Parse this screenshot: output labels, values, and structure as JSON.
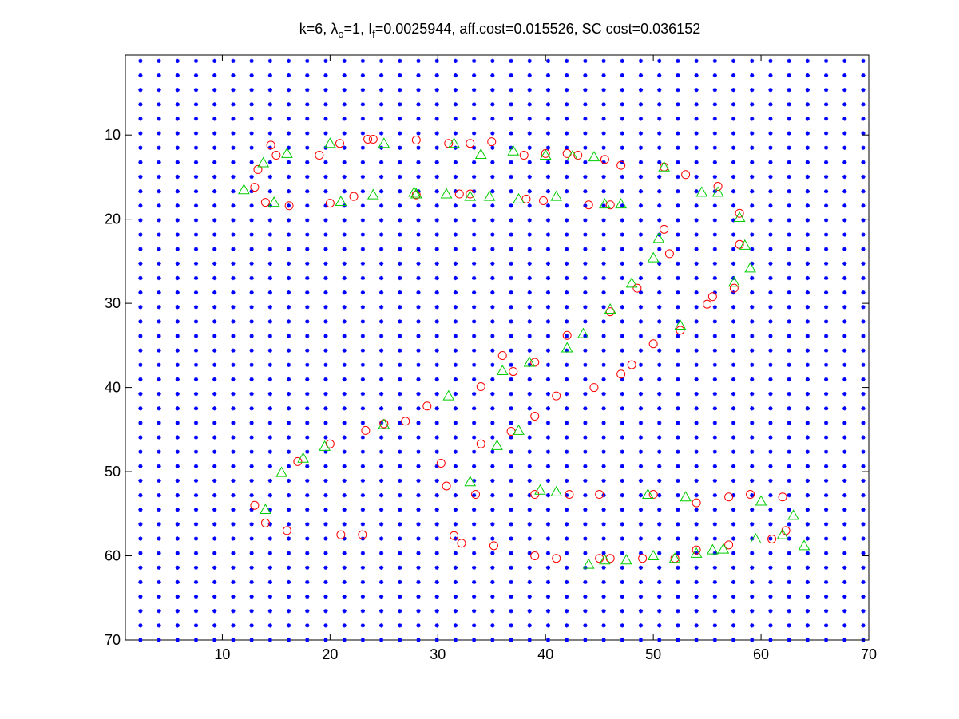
{
  "figure": {
    "title_parts": {
      "k": "k=6, ",
      "lambda_sym": "λ",
      "lambda_sub": "o",
      "lambda_val": "=1, ",
      "I_sym": "I",
      "I_sub": "f",
      "I_val": "=0.0025944, aff.cost=0.015526, SC cost=0.036152"
    },
    "background": "#ffffff"
  },
  "chart_data": {
    "type": "scatter",
    "xlim": [
      1,
      70
    ],
    "ylim": [
      0.5,
      70
    ],
    "y_reversed": true,
    "grid": false,
    "x_ticks": [
      10,
      20,
      30,
      40,
      50,
      60,
      70
    ],
    "y_ticks": [
      10,
      20,
      30,
      40,
      50,
      60,
      70
    ],
    "x_tick_labels": [
      "10",
      "20",
      "30",
      "40",
      "50",
      "60",
      "70"
    ],
    "y_tick_labels": [
      "10",
      "20",
      "30",
      "40",
      "50",
      "60",
      "70"
    ],
    "colors": {
      "grid_points": "#0000ff",
      "circles": "#ff0000",
      "triangles": "#00cc00"
    },
    "grid_points": {
      "marker": "asterisk",
      "x_start": 2.4,
      "x_end": 70,
      "x_step": 1.72,
      "y_start": 1.2,
      "y_end": 70,
      "y_step": 1.72
    },
    "series": [
      {
        "marker": "circle",
        "x": [
          13.0,
          13.3,
          14.0,
          14.5,
          15.0,
          16.2,
          19.0,
          20.0,
          20.9,
          22.2,
          23.5,
          24.0,
          25.0,
          28.0,
          28.0,
          30.3,
          30.8,
          31.0,
          32.0,
          32.2,
          33.0,
          33.0,
          33.5,
          34.0,
          34.0,
          35.0,
          35.2,
          36.0,
          36.8,
          37.0,
          38.0,
          38.2,
          39.0,
          39.0,
          39.0,
          39.0,
          39.8,
          40.0,
          41.0,
          41.0,
          42.0,
          42.0,
          42.2,
          43.0,
          44.0,
          44.5,
          45.0,
          45.0,
          45.5,
          46.0,
          46.0,
          46.0,
          47.0,
          47.0,
          48.0,
          48.5,
          49.0,
          50.0,
          50.0,
          51.0,
          51.0,
          51.5,
          52.0,
          52.5,
          53.0,
          54.0,
          54.0,
          55.0,
          55.5,
          56.0,
          57.0,
          57.0,
          57.5,
          58.0,
          58.0,
          59.0,
          61.0,
          62.0,
          62.3
        ],
        "y": [
          16.2,
          14.1,
          18.0,
          11.2,
          12.4,
          18.4,
          12.4,
          18.1,
          11.0,
          17.3,
          10.5,
          10.5,
          44.3,
          10.6,
          17.1,
          49.0,
          51.7,
          11.0,
          17.0,
          58.5,
          11.0,
          17.0,
          52.7,
          46.7,
          39.9,
          10.8,
          58.8,
          36.2,
          45.2,
          38.1,
          12.4,
          17.6,
          37.0,
          43.4,
          52.7,
          60.0,
          17.8,
          12.2,
          41.0,
          60.3,
          12.2,
          33.8,
          52.7,
          12.4,
          18.3,
          40.0,
          52.7,
          60.3,
          12.9,
          18.3,
          31.0,
          60.3,
          13.6,
          38.4,
          37.3,
          28.2,
          60.3,
          34.8,
          52.7,
          13.8,
          21.2,
          24.1,
          60.3,
          33.2,
          14.7,
          53.7,
          59.3,
          30.1,
          29.2,
          16.1,
          53.0,
          58.7,
          28.2,
          19.3,
          23.0,
          52.7,
          58.0,
          53.0,
          57.0
        ],
        "x_extra": [
          13.0,
          14.0,
          17.0,
          20.0,
          21.0,
          23.0,
          27.0,
          29.0,
          31.5,
          16.0,
          23.3
        ],
        "y_extra": [
          54.0,
          56.1,
          48.8,
          46.7,
          57.5,
          57.5,
          44.0,
          42.2,
          57.6,
          57.0,
          45.1
        ]
      },
      {
        "marker": "triangle",
        "x": [
          12.0,
          13.8,
          14.8,
          16.0,
          20.0,
          21.0,
          24.0,
          25.0,
          27.8,
          30.8,
          31.5,
          33.0,
          34.0,
          34.8,
          36.0,
          37.0,
          37.5,
          38.5,
          39.5,
          40.0,
          41.0,
          42.0,
          42.5,
          43.5,
          44.5,
          45.5,
          46.0,
          47.0,
          48.0,
          49.5,
          50.0,
          50.5,
          51.0,
          52.5,
          53.0,
          54.5,
          55.5,
          56.0,
          57.5,
          58.0,
          58.5,
          59.0,
          60.0,
          62.0,
          63.0,
          17.5,
          15.5,
          14.0,
          19.5,
          25.0,
          28.0,
          31.0,
          33.0,
          35.5,
          37.5,
          41.0,
          44.0,
          45.5,
          47.5,
          50.0,
          52.0,
          54.0,
          56.5,
          59.5,
          64.0
        ],
        "y": [
          16.5,
          13.3,
          18.0,
          12.2,
          11.0,
          17.9,
          17.1,
          11.0,
          16.8,
          17.0,
          11.0,
          17.3,
          12.3,
          17.3,
          38.0,
          11.9,
          17.6,
          37.0,
          52.2,
          12.4,
          17.3,
          35.3,
          12.5,
          33.6,
          12.6,
          18.2,
          30.7,
          18.2,
          27.6,
          52.7,
          24.6,
          22.3,
          13.8,
          32.6,
          53.0,
          16.8,
          59.3,
          16.8,
          27.5,
          19.8,
          23.1,
          25.8,
          53.5,
          57.5,
          55.2,
          48.4,
          50.1,
          54.5,
          47.0,
          44.4,
          17.0,
          41.0,
          51.2,
          46.9,
          45.1,
          52.4,
          61.0,
          60.5,
          60.5,
          60.0,
          60.3,
          59.7,
          59.2,
          58.0,
          58.8
        ]
      }
    ]
  }
}
